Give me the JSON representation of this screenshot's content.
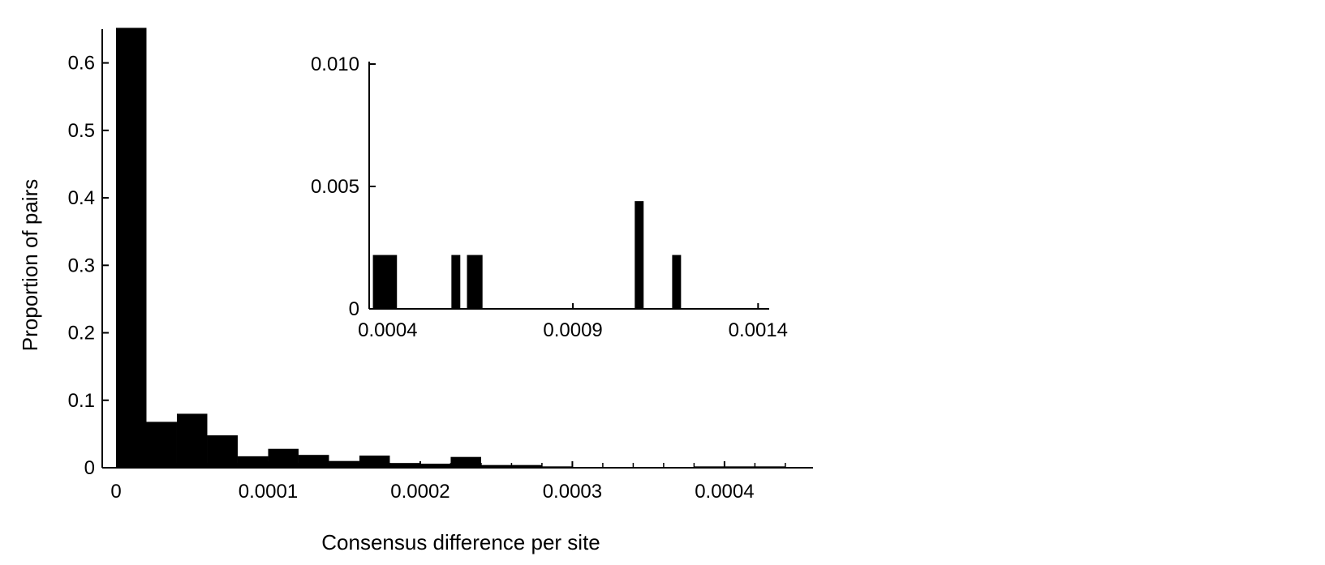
{
  "chart_data": [
    {
      "type": "bar",
      "title": "",
      "xlabel": "Consensus difference per site",
      "ylabel": "Proportion of pairs",
      "xlim": [
        0,
        0.0004582
      ],
      "ylim": [
        0,
        0.65
      ],
      "xticks": [
        "0",
        "0.0001",
        "0.0002",
        "0.0003",
        "0.0004"
      ],
      "xtick_values": [
        0,
        0.0001,
        0.0002,
        0.0003,
        0.0004
      ],
      "minor_xticks": [
        2e-05,
        4e-05,
        6e-05,
        8e-05,
        0.00012,
        0.00014,
        0.00016,
        0.00018,
        0.00022,
        0.00024,
        0.00026,
        0.00028,
        0.00032,
        0.00034,
        0.00036,
        0.00038,
        0.00042,
        0.00044
      ],
      "yticks": [
        "0",
        "0.1",
        "0.2",
        "0.3",
        "0.4",
        "0.5",
        "0.6"
      ],
      "ytick_values": [
        0,
        0.1,
        0.2,
        0.3,
        0.4,
        0.5,
        0.6
      ],
      "bin_width": 2e-05,
      "bin_starts": [
        0,
        2e-05,
        4e-05,
        6e-05,
        8e-05,
        0.0001,
        0.00012,
        0.00014,
        0.00016,
        0.00018,
        0.0002,
        0.00022,
        0.00024,
        0.00026,
        0.00028,
        0.0003,
        0.00032,
        0.00034,
        0.00036,
        0.00038,
        0.0004,
        0.00042
      ],
      "values": [
        0.652,
        0.068,
        0.08,
        0.048,
        0.017,
        0.028,
        0.019,
        0.01,
        0.018,
        0.007,
        0.006,
        0.016,
        0.004,
        0.004,
        0.002,
        0,
        0,
        0,
        0,
        0.002,
        0.002,
        0.002
      ],
      "grid": false,
      "bar_color": "#000000"
    },
    {
      "type": "bar",
      "title": "",
      "xlabel": "",
      "ylabel": "",
      "xlim": [
        0.00035,
        0.00143
      ],
      "ylim": [
        0,
        0.0101
      ],
      "xticks": [
        "0.0004",
        "0.0009",
        "0.0014"
      ],
      "xtick_values": [
        0.0004,
        0.0009,
        0.0014
      ],
      "yticks": [
        "0",
        "0.005",
        "0.010"
      ],
      "ytick_values": [
        0,
        0.005,
        0.01
      ],
      "bars": [
        {
          "start": 0.00036,
          "end": 0.000425,
          "value": 0.0022
        },
        {
          "start": 0.000572,
          "end": 0.000596,
          "value": 0.0022
        },
        {
          "start": 0.000614,
          "end": 0.000656,
          "value": 0.0022
        },
        {
          "start": 0.001067,
          "end": 0.001091,
          "value": 0.0044
        },
        {
          "start": 0.001168,
          "end": 0.001192,
          "value": 0.0022
        }
      ],
      "grid": false,
      "bar_color": "#000000"
    }
  ]
}
